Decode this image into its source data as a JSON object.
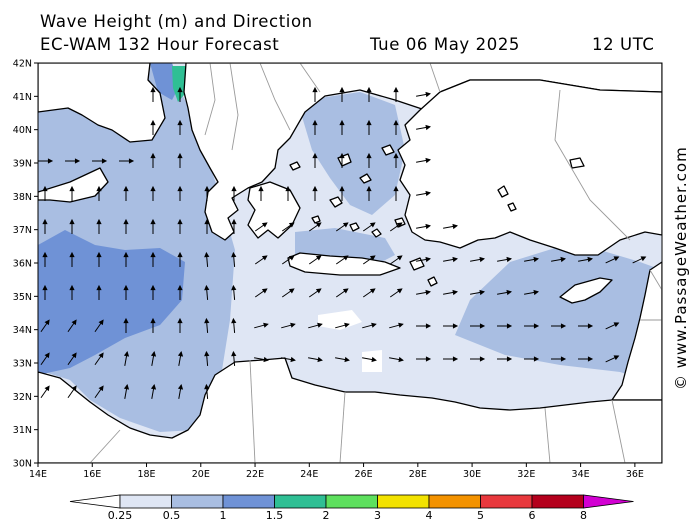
{
  "header": {
    "title": "Wave Height (m) and Direction",
    "model_line": "EC-WAM 132 Hour Forecast",
    "date": "Tue 06 May 2025",
    "time": "12 UTC"
  },
  "credit": "© www.PassageWeather.com",
  "axes": {
    "lon_labels": [
      "14E",
      "16E",
      "18E",
      "20E",
      "22E",
      "24E",
      "26E",
      "28E",
      "30E",
      "32E",
      "34E",
      "36E"
    ],
    "lat_labels": [
      "42N",
      "41N",
      "40N",
      "39N",
      "38N",
      "37N",
      "36N",
      "35N",
      "34N",
      "33N",
      "32N",
      "31N",
      "30N"
    ]
  },
  "legend": {
    "labels": [
      "0.25",
      "0.5",
      "1",
      "1.5",
      "2",
      "3",
      "4",
      "5",
      "6",
      "8"
    ],
    "colors": [
      "#ffffff",
      "#dfe6f4",
      "#a9bee2",
      "#6f92d6",
      "#2fbf94",
      "#5ee05e",
      "#f2e200",
      "#f39200",
      "#e8383d",
      "#b4001c",
      "#d200d2"
    ]
  },
  "map_colors": {
    "land": "#ffffff",
    "sea_calm": "#dfe6f4",
    "sea_low": "#a9bee2",
    "sea_mid": "#6f92d6",
    "sea_high": "#2fbf94",
    "coast": "#000000",
    "border": "#9a9a9a"
  }
}
